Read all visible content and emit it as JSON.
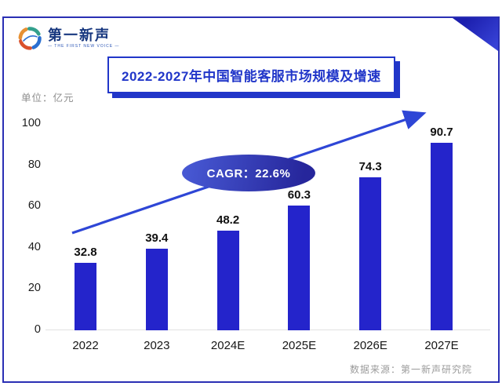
{
  "logo": {
    "name": "第一新声",
    "tagline": "— THE FIRST NEW VOICE —",
    "icon": "swirl-globe-icon"
  },
  "title": "2022-2027年中国智能客服市场规模及增速",
  "unit_label": "单位：亿元",
  "cagr_label": "CAGR：22.6%",
  "source": "数据来源：第一新声研究院",
  "colors": {
    "frame_border": "#2a2fb4",
    "banner_accent": "#2136c9",
    "bar_fill": "#2424cb",
    "arrow": "#2e46d6",
    "cagr_gradient_start": "#4758d3",
    "cagr_gradient_end": "#26269b",
    "axis_text": "#1c1c1c",
    "muted_text": "#9b9b9b"
  },
  "chart_data": {
    "type": "bar",
    "title": "2022-2027年中国智能客服市场规模及增速",
    "categories": [
      "2022",
      "2023",
      "2024E",
      "2025E",
      "2026E",
      "2027E"
    ],
    "values": [
      32.8,
      39.4,
      48.2,
      60.3,
      74.3,
      90.7
    ],
    "xlabel": "",
    "ylabel": "单位：亿元",
    "ylim": [
      0,
      100
    ],
    "yticks": [
      0,
      20,
      40,
      60,
      80,
      100
    ],
    "grid": false,
    "legend": false,
    "annotations": [
      {
        "label": "CAGR：22.6%",
        "shape": "ellipse"
      },
      {
        "label": "upward trend arrow",
        "shape": "arrow"
      }
    ]
  }
}
